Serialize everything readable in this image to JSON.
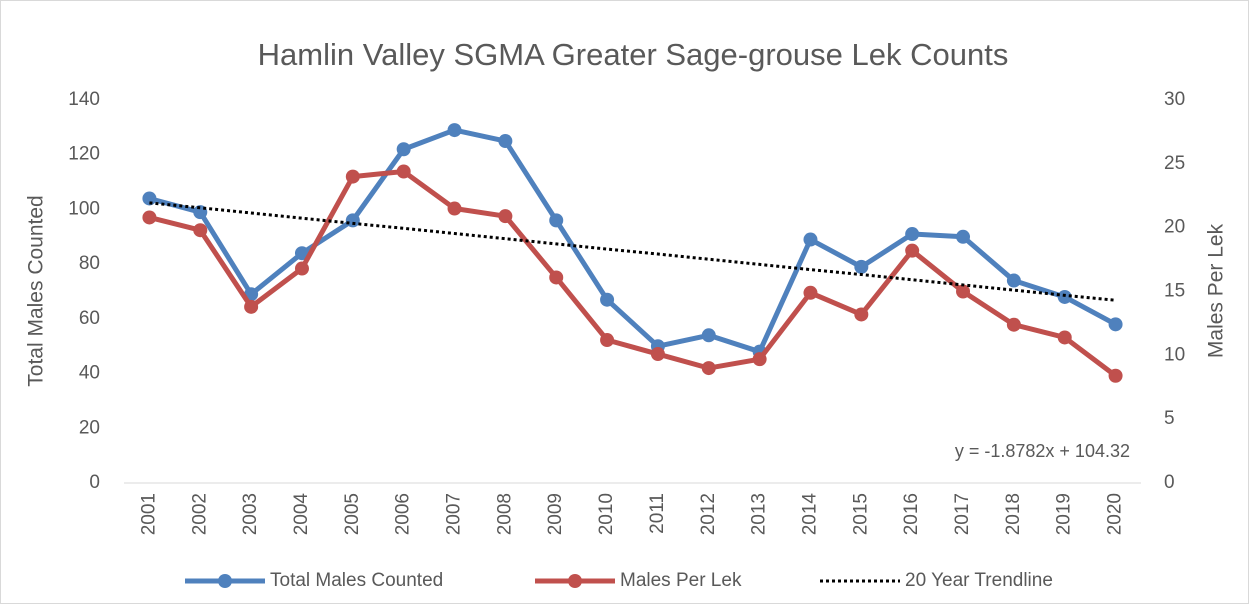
{
  "chart_data": {
    "type": "line",
    "title": "Hamlin Valley SGMA Greater Sage-grouse Lek Counts",
    "y_label": "Total Males Counted",
    "y2_label": "Males Per Lek",
    "annotation": "y = -1.8782x + 104.32",
    "categories": [
      "2001",
      "2002",
      "2003",
      "2004",
      "2005",
      "2006",
      "2007",
      "2008",
      "2009",
      "2010",
      "2011",
      "2012",
      "2013",
      "2014",
      "2015",
      "2016",
      "2017",
      "2018",
      "2019",
      "2020"
    ],
    "series": [
      {
        "name": "Total Males Counted",
        "color": "#4f81bd",
        "style": "solid",
        "marker": true,
        "values": [
          104,
          99,
          69,
          84,
          96,
          122,
          129,
          125,
          96,
          67,
          50,
          54,
          48,
          89,
          79,
          91,
          90,
          74,
          68,
          58
        ]
      },
      {
        "name": "Males Per Lek",
        "color": "#c0504d",
        "style": "solid",
        "marker": true,
        "axis": "y2",
        "values": [
          20.8,
          19.8,
          13.8,
          16.8,
          24.0,
          24.4,
          21.5,
          20.9,
          16.1,
          11.2,
          10.1,
          9.0,
          9.7,
          14.9,
          13.2,
          18.2,
          15.0,
          12.4,
          11.4,
          8.4
        ]
      },
      {
        "name": "20 Year Trendline",
        "color": "#000000",
        "style": "dotted",
        "marker": false,
        "values": [
          102.4,
          100.6,
          98.7,
          96.8,
          94.9,
          93.1,
          91.2,
          89.3,
          87.4,
          85.5,
          83.7,
          81.8,
          79.9,
          78.0,
          76.2,
          74.3,
          72.4,
          70.5,
          68.6,
          66.8
        ]
      }
    ],
    "ylim": [
      0,
      140
    ],
    "yticks": [
      0,
      20,
      40,
      60,
      80,
      100,
      120,
      140
    ],
    "y2lim": [
      0,
      30
    ],
    "y2ticks": [
      0,
      5,
      10,
      15,
      20,
      25,
      30
    ],
    "grid": false,
    "legend": "bottom"
  }
}
